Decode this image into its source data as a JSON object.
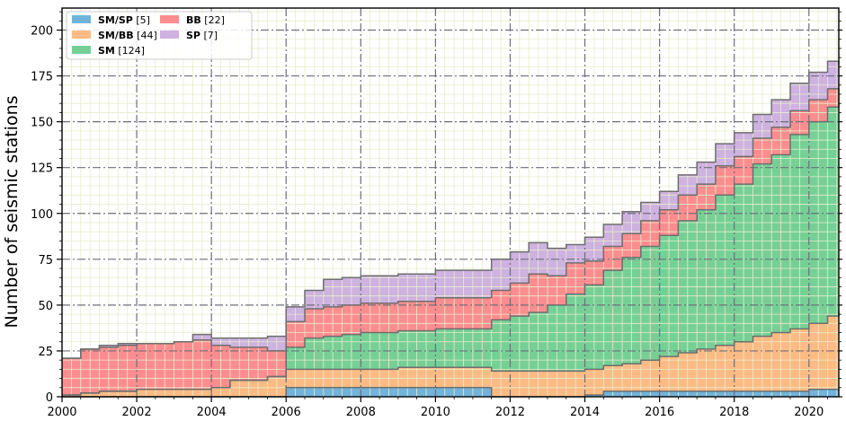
{
  "chart_data": {
    "type": "area",
    "stacked": true,
    "step": true,
    "ylabel": "Number of seismic stations",
    "xlabel": "",
    "xlim": [
      2000,
      2020.8
    ],
    "ylim": [
      0,
      212
    ],
    "x_ticks": [
      2000,
      2002,
      2004,
      2006,
      2008,
      2010,
      2012,
      2014,
      2016,
      2018,
      2020
    ],
    "y_ticks": [
      0,
      25,
      50,
      75,
      100,
      125,
      150,
      175,
      200
    ],
    "grid": true,
    "minor_grid": true,
    "legend_position": "top-left",
    "legend_columns": 2,
    "x": [
      2000.0,
      2000.5,
      2001.0,
      2001.5,
      2002.0,
      2002.5,
      2003.0,
      2003.5,
      2004.0,
      2004.5,
      2005.0,
      2005.5,
      2006.0,
      2006.5,
      2007.0,
      2007.5,
      2008.0,
      2008.5,
      2009.0,
      2009.5,
      2010.0,
      2010.5,
      2011.0,
      2011.5,
      2012.0,
      2012.5,
      2013.0,
      2013.5,
      2014.0,
      2014.5,
      2015.0,
      2015.5,
      2016.0,
      2016.5,
      2017.0,
      2017.5,
      2018.0,
      2018.5,
      2019.0,
      2019.5,
      2020.0,
      2020.5,
      2020.8
    ],
    "series": [
      {
        "name": "SM/SP",
        "count": 5,
        "color": "#72b3da",
        "values": [
          0,
          0,
          0,
          0,
          0,
          0,
          0,
          0,
          0,
          0,
          0,
          0,
          5,
          5,
          5,
          5,
          5,
          5,
          5,
          5,
          5,
          5,
          5,
          0,
          0,
          0,
          0,
          0,
          1,
          3,
          3,
          3,
          3,
          3,
          3,
          3,
          3,
          3,
          3,
          3,
          4,
          4,
          4
        ]
      },
      {
        "name": "SM/BB",
        "count": 44,
        "color": "#fcbb84",
        "values": [
          1,
          2,
          3,
          3,
          4,
          4,
          4,
          4,
          5,
          9,
          9,
          11,
          10,
          10,
          10,
          10,
          10,
          10,
          11,
          11,
          11,
          11,
          11,
          14,
          14,
          14,
          14,
          14,
          14,
          14,
          15,
          17,
          19,
          21,
          23,
          25,
          27,
          30,
          32,
          34,
          36,
          40,
          43
        ]
      },
      {
        "name": "SM",
        "count": 124,
        "color": "#76d096",
        "values": [
          0,
          0,
          0,
          0,
          0,
          0,
          0,
          0,
          0,
          0,
          0,
          0,
          12,
          17,
          18,
          19,
          20,
          20,
          20,
          20,
          21,
          21,
          21,
          28,
          30,
          32,
          36,
          42,
          46,
          52,
          58,
          62,
          66,
          72,
          76,
          82,
          86,
          94,
          97,
          106,
          110,
          114,
          119
        ]
      },
      {
        "name": "BB",
        "count": 22,
        "color": "#fc8d8e",
        "values": [
          20,
          24,
          24,
          25,
          25,
          25,
          26,
          27,
          23,
          18,
          18,
          14,
          14,
          16,
          16,
          16,
          16,
          16,
          16,
          16,
          17,
          17,
          17,
          16,
          18,
          21,
          16,
          17,
          13,
          13,
          13,
          14,
          14,
          14,
          14,
          16,
          15,
          14,
          15,
          13,
          12,
          10,
          0
        ]
      },
      {
        "name": "SP",
        "count": 7,
        "color": "#ceb2e0",
        "values": [
          0,
          0,
          1,
          1,
          0,
          0,
          0,
          3,
          4,
          5,
          5,
          8,
          8,
          10,
          15,
          15,
          15,
          15,
          15,
          15,
          15,
          15,
          15,
          17,
          17,
          17,
          15,
          10,
          13,
          12,
          12,
          10,
          10,
          11,
          12,
          12,
          13,
          13,
          15,
          15,
          15,
          15,
          15
        ]
      }
    ]
  }
}
